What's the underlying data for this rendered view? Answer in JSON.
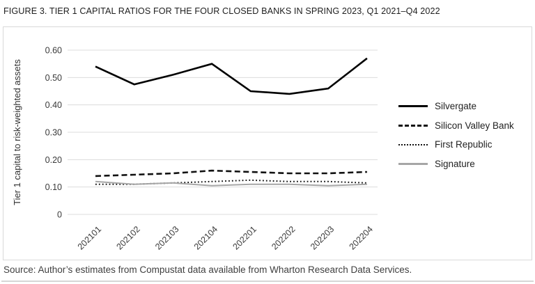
{
  "figure": {
    "title": "FIGURE 3. TIER 1 CAPITAL RATIOS FOR THE FOUR CLOSED BANKS IN SPRING 2023, Q1 2021–Q4 2022",
    "source": "Source: Author’s estimates from Compustat data available from Wharton Research Data Services."
  },
  "colors": {
    "gridline": "#dcdcdc",
    "axis_text": "#3a3a3a",
    "panel_border": "#d9d9d9",
    "black_line": "#000000",
    "gray_line": "#a6a6a6"
  },
  "chart_data": {
    "type": "line",
    "title": "FIGURE 3. TIER 1 CAPITAL RATIOS FOR THE FOUR CLOSED BANKS IN SPRING 2023, Q1 2021–Q4 2022",
    "xlabel": "",
    "ylabel": "Tier 1 capital to risk-weighted assets",
    "categories": [
      "202101",
      "202102",
      "202103",
      "202104",
      "202201",
      "202202",
      "202203",
      "202204"
    ],
    "y_ticks": [
      "0.60",
      "0.50",
      "0.40",
      "0.30",
      "0.20",
      "0.10",
      "0"
    ],
    "ylim": [
      0,
      0.6
    ],
    "grid": true,
    "legend_position": "right",
    "series": [
      {
        "name": "Silvergate",
        "style": "solid",
        "color": "#000000",
        "width": 2.6,
        "values": [
          0.54,
          0.475,
          0.51,
          0.55,
          0.45,
          0.44,
          0.46,
          0.57
        ]
      },
      {
        "name": "Silicon Valley Bank",
        "style": "dashed",
        "color": "#111111",
        "width": 2.6,
        "values": [
          0.14,
          0.145,
          0.15,
          0.16,
          0.155,
          0.15,
          0.15,
          0.155
        ]
      },
      {
        "name": "First Republic",
        "style": "dotted",
        "color": "#111111",
        "width": 2,
        "values": [
          0.11,
          0.11,
          0.115,
          0.12,
          0.125,
          0.12,
          0.12,
          0.115
        ]
      },
      {
        "name": "Signature",
        "style": "solid",
        "color": "#a6a6a6",
        "width": 2,
        "values": [
          0.12,
          0.11,
          0.115,
          0.105,
          0.11,
          0.11,
          0.105,
          0.11
        ]
      }
    ]
  }
}
